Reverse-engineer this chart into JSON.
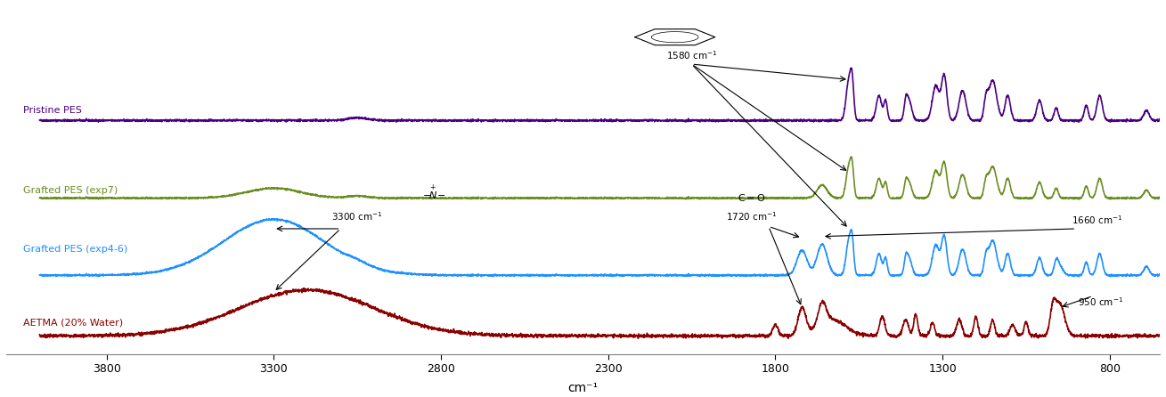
{
  "title": "",
  "xlabel": "cm⁻¹",
  "xlim": [
    4000,
    650
  ],
  "xticks": [
    3800,
    3300,
    2800,
    2300,
    1800,
    1300,
    800
  ],
  "colors": {
    "pristine": "#4B0082",
    "grafted_exp7": "#6B8E23",
    "grafted_exp46": "#1E90FF",
    "aetma": "#8B0000"
  },
  "labels": {
    "pristine": "Pristine PES",
    "grafted_exp7": "Grafted PES (exp7)",
    "grafted_exp46": "Grafted PES (exp4-6)",
    "aetma": "AETMA (20% Water)"
  },
  "offsets": {
    "pristine": 2.8,
    "grafted_exp7": 1.8,
    "grafted_exp46": 0.8,
    "aetma": 0.0
  },
  "background": "#FFFFFF"
}
